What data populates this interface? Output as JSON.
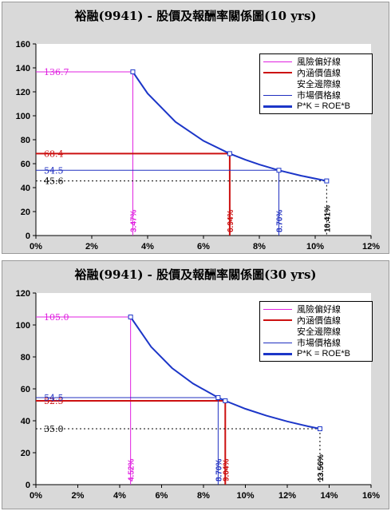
{
  "chart_data": [
    {
      "type": "line",
      "title": "裕融(9941) - 股價及報酬率關係圖(10 yrs)",
      "xlabel": "",
      "ylabel": "",
      "xlim": [
        0,
        12
      ],
      "ylim": [
        0,
        160
      ],
      "x_ticks": [
        "0%",
        "2%",
        "4%",
        "6%",
        "8%",
        "10%",
        "12%"
      ],
      "y_ticks": [
        "0",
        "20",
        "40",
        "60",
        "80",
        "100",
        "120",
        "140",
        "160"
      ],
      "grid": false,
      "legend_position": "top-right",
      "legend": [
        "風險偏好線",
        "內涵價值線",
        "安全邊際線",
        "市場價格線",
        "P*K = ROE*B"
      ],
      "curve": {
        "name": "P*K = ROE*B",
        "x": [
          3.47,
          4.0,
          5.0,
          6.0,
          6.94,
          7.5,
          8.0,
          8.7,
          9.5,
          10.41
        ],
        "y": [
          136.7,
          118.6,
          94.9,
          79.1,
          68.4,
          63.3,
          59.3,
          54.5,
          49.9,
          45.6
        ]
      },
      "markers": [
        {
          "name": "風險偏好線",
          "x": 3.47,
          "y": 136.7,
          "x_label": "3.47%",
          "y_label": "136.7",
          "color": "#e020e0"
        },
        {
          "name": "內涵價值線",
          "x": 6.94,
          "y": 68.4,
          "x_label": "6.94%",
          "y_label": "68.4",
          "color": "#cc1010"
        },
        {
          "name": "市場價格線",
          "x": 8.7,
          "y": 54.5,
          "x_label": "8.70%",
          "y_label": "54.5",
          "color": "#2030c0"
        },
        {
          "name": "安全邊際線",
          "x": 10.41,
          "y": 45.6,
          "x_label": "10.41%",
          "y_label": "45.6",
          "color": "#000000"
        }
      ]
    },
    {
      "type": "line",
      "title": "裕融(9941) - 股價及報酬率關係圖(30 yrs)",
      "xlabel": "",
      "ylabel": "",
      "xlim": [
        0,
        16
      ],
      "ylim": [
        0,
        120
      ],
      "x_ticks": [
        "0%",
        "2%",
        "4%",
        "6%",
        "8%",
        "10%",
        "12%",
        "14%",
        "16%"
      ],
      "y_ticks": [
        "0",
        "20",
        "40",
        "60",
        "80",
        "100",
        "120"
      ],
      "grid": false,
      "legend_position": "top-right",
      "legend": [
        "風險偏好線",
        "內涵價值線",
        "安全邊際線",
        "市場價格線",
        "P*K = ROE*B"
      ],
      "curve": {
        "name": "P*K = ROE*B",
        "x": [
          4.52,
          5.5,
          6.5,
          7.5,
          8.7,
          9.04,
          10.0,
          11.0,
          12.0,
          13.0,
          13.56
        ],
        "y": [
          105.0,
          86.3,
          73.0,
          63.3,
          54.5,
          52.5,
          47.5,
          43.2,
          39.6,
          36.5,
          35.0
        ]
      },
      "markers": [
        {
          "name": "風險偏好線",
          "x": 4.52,
          "y": 105.0,
          "x_label": "4.52%",
          "y_label": "105.0",
          "color": "#e020e0"
        },
        {
          "name": "內涵價值線",
          "x": 9.04,
          "y": 52.5,
          "x_label": "9.04%",
          "y_label": "52.5",
          "color": "#cc1010"
        },
        {
          "name": "市場價格線",
          "x": 8.7,
          "y": 54.5,
          "x_label": "8.70%",
          "y_label": "54.5",
          "color": "#2030c0"
        },
        {
          "name": "安全邊際線",
          "x": 13.56,
          "y": 35.0,
          "x_label": "13.56%",
          "y_label": "35.0",
          "color": "#000000"
        }
      ]
    }
  ],
  "legend_styles": [
    {
      "color": "#e020e0",
      "style": "thin"
    },
    {
      "color": "#cc1010",
      "style": "medium"
    },
    {
      "color": "#ffffff",
      "style": "none"
    },
    {
      "color": "#2030c0",
      "style": "thin"
    },
    {
      "color": "#1c36c8",
      "style": "thick"
    }
  ]
}
